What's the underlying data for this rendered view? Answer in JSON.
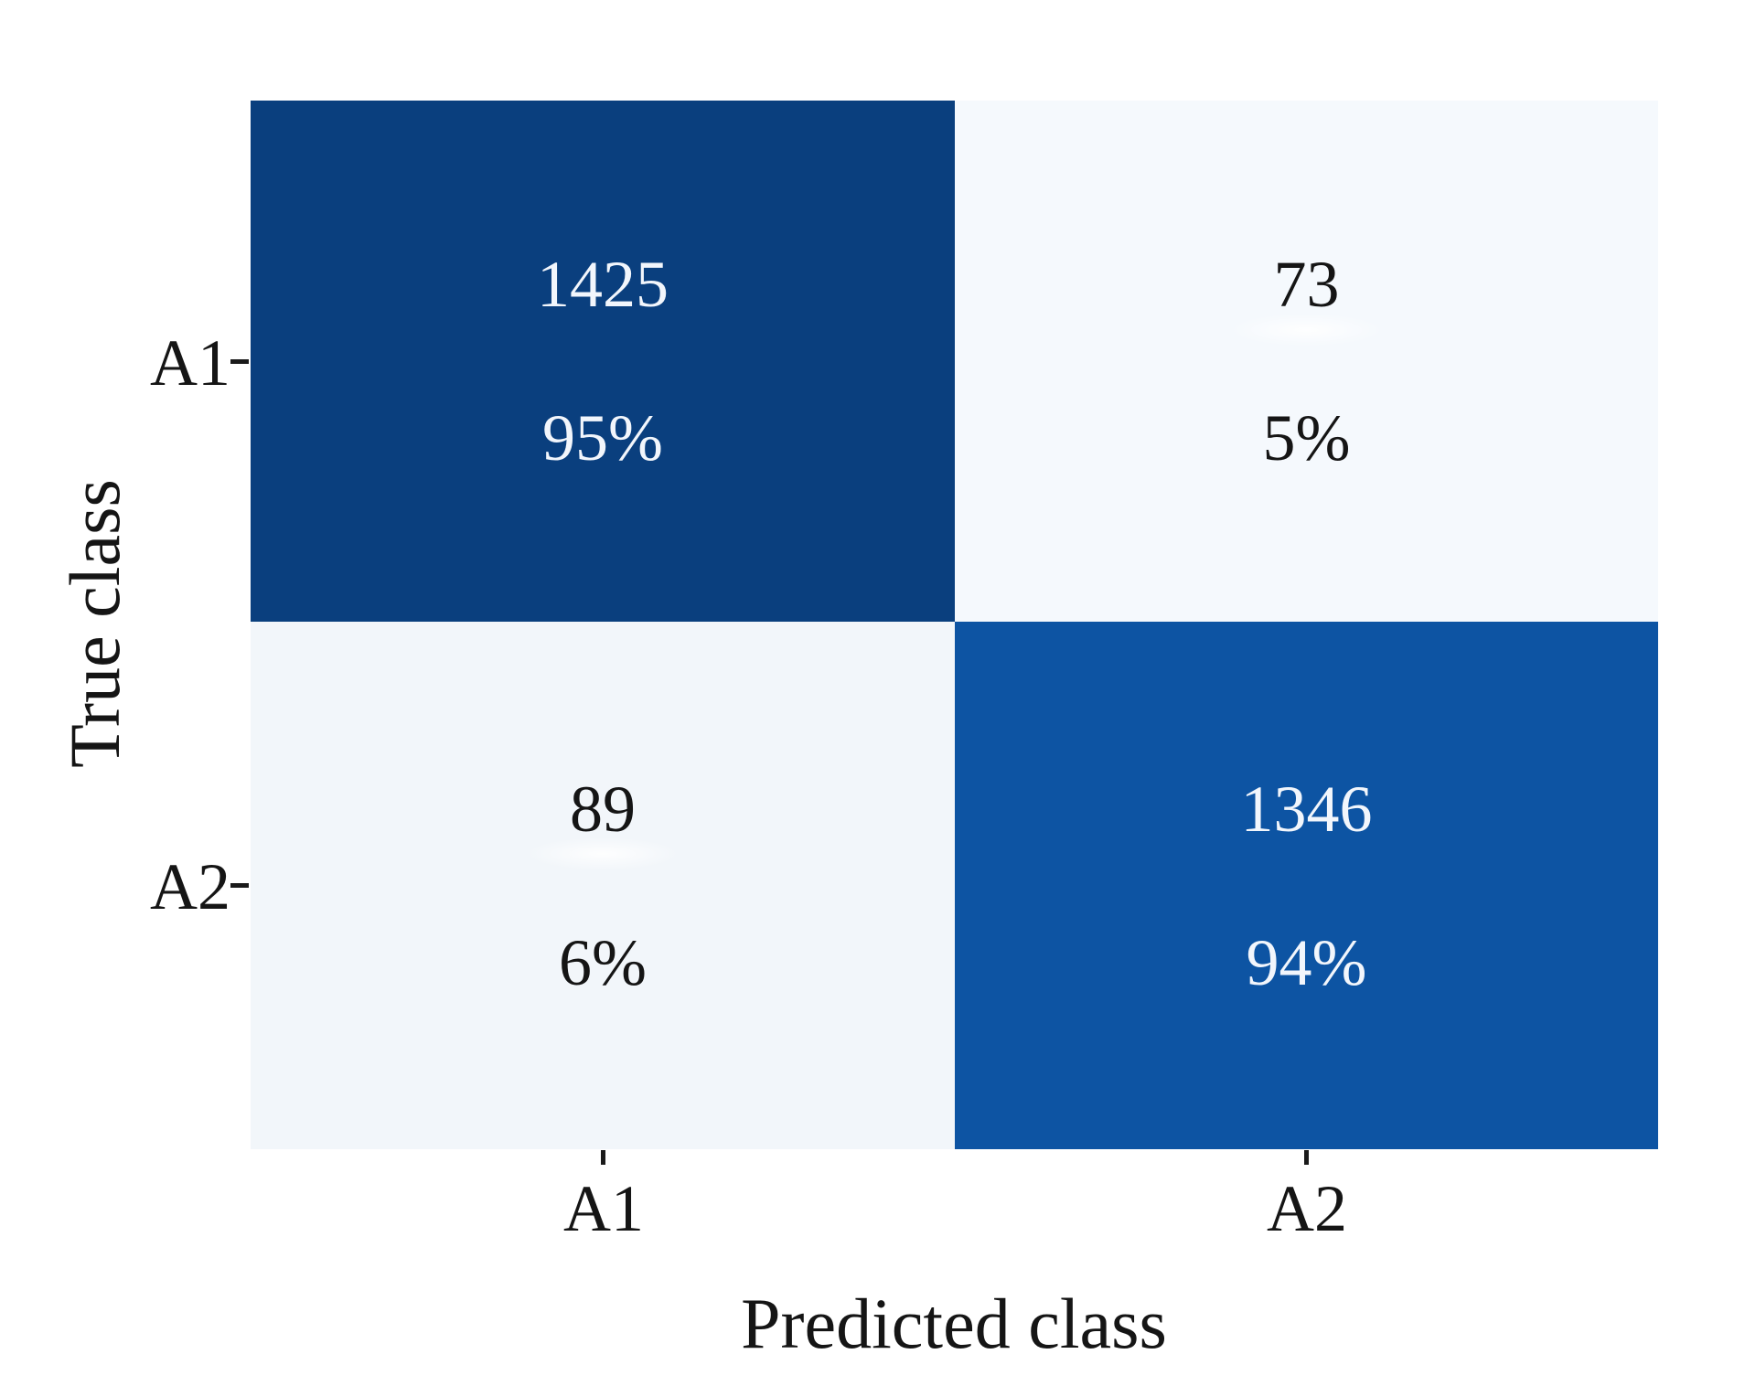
{
  "figure": {
    "background": "#ffffff",
    "text_color": "#151515",
    "tick_color": "#1a1a1a"
  },
  "colors": {
    "cell_dark_navy": "#0a3f7e",
    "cell_bright_blue": "#0d54a3",
    "cell_light_top_right": "#f5f9fd",
    "cell_light_bottom_left": "#f2f6fa",
    "cell_text_on_dark": "#f2f6fc",
    "cell_text_on_light": "#151515"
  },
  "chart_data": {
    "type": "heatmap",
    "subtype": "confusion-matrix",
    "title": "",
    "xlabel": "Predicted class",
    "ylabel": "True class",
    "x_categories": [
      "A1",
      "A2"
    ],
    "y_categories": [
      "A1",
      "A2"
    ],
    "legend": "none",
    "grid": false,
    "cells": [
      {
        "true_class": "A1",
        "predicted_class": "A1",
        "count": "1425",
        "percent": 95,
        "percent_label": "95%",
        "fill": "#0a3f7e",
        "text_color": "#f2f6fc"
      },
      {
        "true_class": "A1",
        "predicted_class": "A2",
        "count": "73",
        "percent": 5,
        "percent_label": "5%",
        "fill": "#f5f9fd",
        "text_color": "#151515"
      },
      {
        "true_class": "A2",
        "predicted_class": "A1",
        "count": "89",
        "percent": 6,
        "percent_label": "6%",
        "fill": "#f2f6fa",
        "text_color": "#151515"
      },
      {
        "true_class": "A2",
        "predicted_class": "A2",
        "count": "1346",
        "percent": 94,
        "percent_label": "94%",
        "fill": "#0d54a3",
        "text_color": "#f2f6fc"
      }
    ],
    "axes": {
      "x_tick_labels": [
        "A1",
        "A2"
      ],
      "y_tick_labels": [
        "A1",
        "A2"
      ]
    }
  }
}
